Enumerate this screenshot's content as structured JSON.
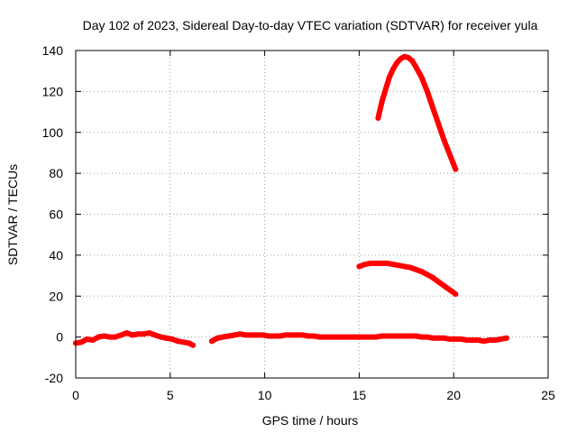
{
  "chart_data": {
    "type": "scatter",
    "title": "Day 102 of 2023, Sidereal Day-to-day VTEC variation (SDTVAR) for receiver yula",
    "xlabel": "GPS time / hours",
    "ylabel": "SDTVAR / TECUs",
    "xlim": [
      0,
      25
    ],
    "ylim": [
      -20,
      140
    ],
    "xticks": [
      0,
      5,
      10,
      15,
      20,
      25
    ],
    "yticks": [
      -20,
      0,
      20,
      40,
      60,
      80,
      100,
      120,
      140
    ],
    "grid": true,
    "legend": "none",
    "series_color": "#ff0000",
    "series": [
      {
        "x": [
          0.0,
          0.3,
          0.6,
          0.9,
          1.2,
          1.5,
          1.8,
          2.1,
          2.4,
          2.7,
          3.0,
          3.3,
          3.6,
          3.9,
          4.2,
          4.5,
          4.8,
          5.1,
          5.4,
          5.7,
          6.0,
          6.2
        ],
        "y": [
          -3,
          -2.5,
          -1,
          -1.5,
          0,
          0.5,
          0,
          0,
          1,
          2,
          1,
          1.5,
          1.5,
          2,
          1,
          0,
          -0.5,
          -1,
          -2,
          -2.5,
          -3,
          -4
        ]
      },
      {
        "x": [
          7.2,
          7.5,
          7.8,
          8.1,
          8.4,
          8.7,
          9.0,
          9.3,
          9.6,
          9.9,
          10.2,
          10.5,
          10.8,
          11.1,
          11.4,
          11.7,
          12.0,
          12.3,
          12.6,
          12.9,
          13.2,
          13.5,
          13.8,
          14.1,
          14.4,
          14.7,
          15.0,
          15.3,
          15.6,
          15.9,
          16.2,
          16.5,
          16.8,
          17.1,
          17.4,
          17.7,
          18.0,
          18.3,
          18.6,
          18.9,
          19.2,
          19.5,
          19.8,
          20.1,
          20.4,
          20.7,
          21.0,
          21.3,
          21.6,
          21.9,
          22.2,
          22.5,
          22.8
        ],
        "y": [
          -2,
          -0.5,
          0,
          0.5,
          1,
          1.5,
          1,
          1,
          1,
          1,
          0.5,
          0.5,
          0.5,
          1,
          1,
          1,
          1,
          0.5,
          0.5,
          0,
          0,
          0,
          0,
          0,
          0,
          0,
          0,
          0,
          0,
          0,
          0.5,
          0.5,
          0.5,
          0.5,
          0.5,
          0.5,
          0.5,
          0,
          0,
          -0.5,
          -0.5,
          -0.5,
          -1,
          -1,
          -1,
          -1.5,
          -1.5,
          -1.5,
          -2,
          -1.5,
          -1.5,
          -1,
          -0.5
        ]
      },
      {
        "x": [
          15.0,
          15.3,
          15.6,
          15.9,
          16.2,
          16.5,
          16.8,
          17.1,
          17.4,
          17.7,
          18.0,
          18.3,
          18.6,
          18.9,
          19.2,
          19.5,
          19.8,
          20.1
        ],
        "y": [
          34.5,
          35.5,
          36,
          36,
          36,
          36,
          35.5,
          35,
          34.5,
          34,
          33,
          32,
          30.5,
          29,
          27,
          25,
          23,
          21
        ]
      },
      {
        "x": [
          16.0,
          16.2,
          16.4,
          16.6,
          16.8,
          17.0,
          17.2,
          17.4,
          17.6,
          17.8,
          18.0,
          18.3,
          18.6,
          18.9,
          19.2,
          19.5,
          19.8,
          20.1
        ],
        "y": [
          107,
          115,
          121,
          127,
          131,
          134,
          136,
          137,
          136.5,
          135,
          132,
          127,
          120,
          112,
          104,
          96,
          89,
          82
        ]
      }
    ]
  }
}
